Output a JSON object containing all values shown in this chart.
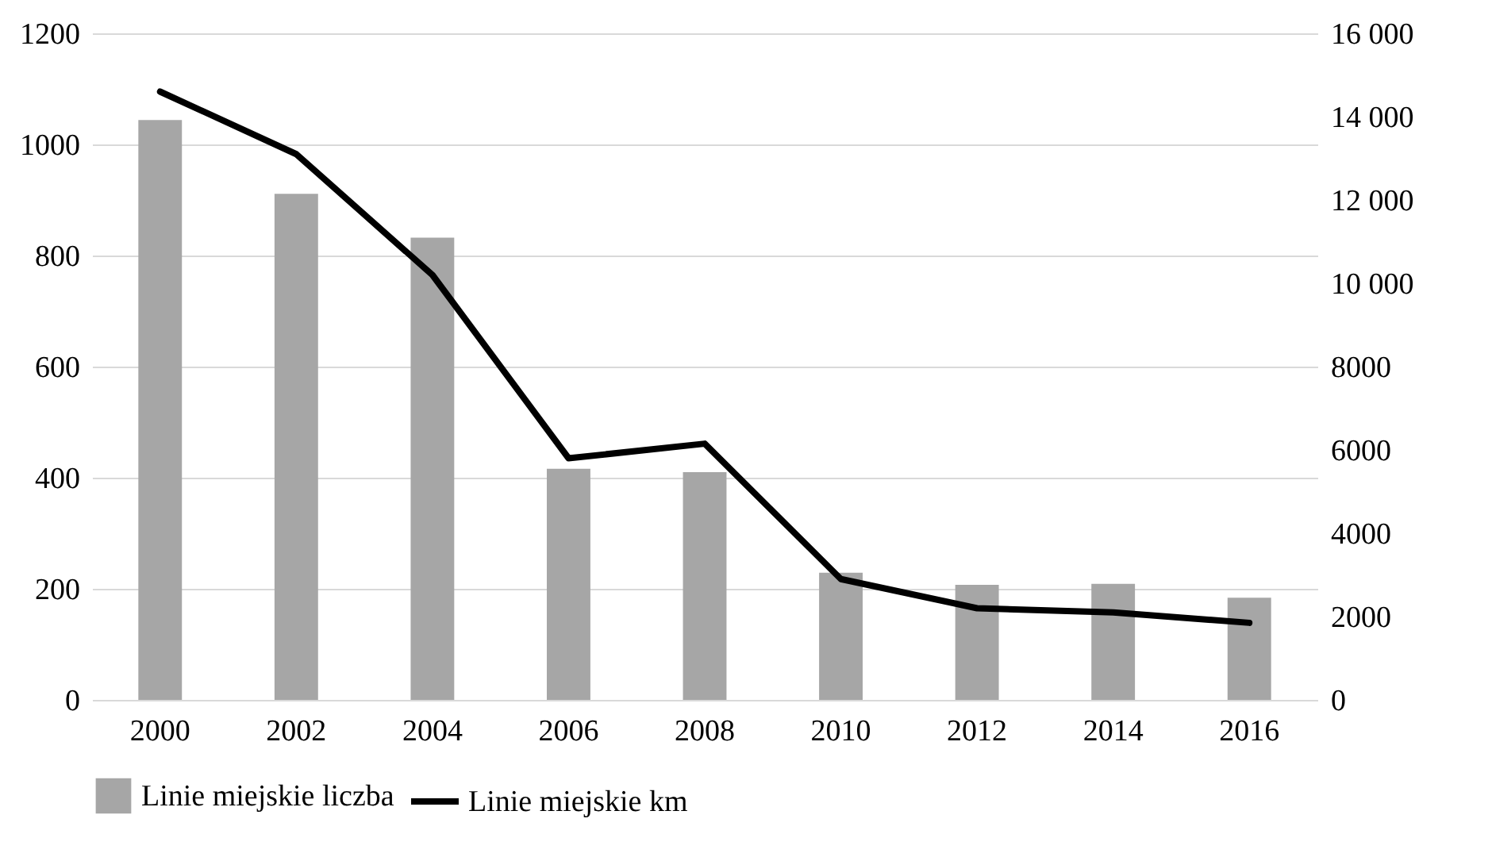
{
  "chart_data": {
    "type": "bar",
    "categories": [
      "2000",
      "2002",
      "2004",
      "2006",
      "2008",
      "2010",
      "2012",
      "2014",
      "2016"
    ],
    "series": [
      {
        "name": "Linie miejskie liczba",
        "color": "#a6a6a6",
        "values": [
          1044,
          911,
          832,
          416,
          410,
          229,
          207,
          209,
          184
        ]
      },
      {
        "name": "Linie miejskie km",
        "type": "line",
        "axis": "y2",
        "color": "#000000",
        "values": [
          14600,
          13100,
          10200,
          5800,
          6150,
          2900,
          2200,
          2100,
          1850
        ]
      }
    ],
    "ylim": [
      0,
      1200
    ],
    "yticks": [
      0,
      200,
      400,
      600,
      800,
      1000,
      1200
    ],
    "y2lim": [
      0,
      16000
    ],
    "y2ticks": [
      0,
      2000,
      4000,
      6000,
      8000,
      {
        "value": 10000,
        "label": "10 000"
      },
      {
        "value": 12000,
        "label": "12 000"
      },
      {
        "value": 14000,
        "label": "14 000"
      },
      {
        "value": 16000,
        "label": "16 000"
      }
    ],
    "grid": "y",
    "legend": "bottom",
    "marker": "none",
    "line_style": "solid"
  }
}
